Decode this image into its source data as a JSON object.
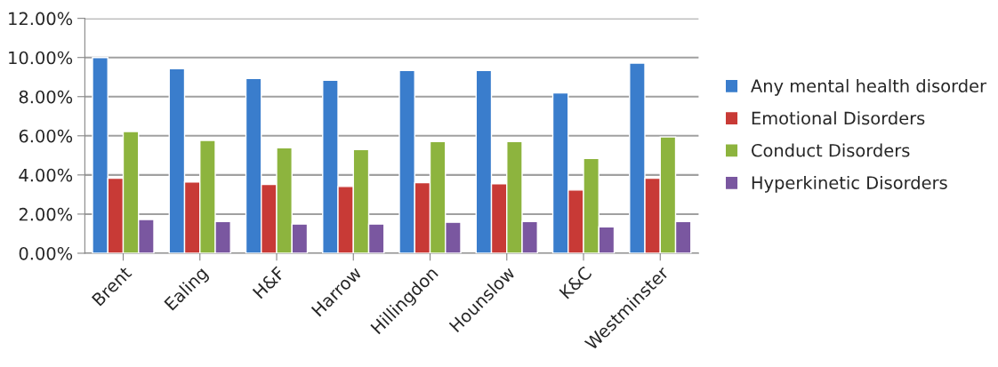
{
  "chart_data": {
    "type": "bar",
    "categories": [
      "Brent",
      "Ealing",
      "H&F",
      "Harrow",
      "Hillingdon",
      "Hounslow",
      "K&C",
      "Westminster"
    ],
    "series": [
      {
        "name": "Any mental health disorder",
        "color": "#3a7dcc",
        "values": [
          10.0,
          9.43,
          8.93,
          8.84,
          9.34,
          9.34,
          8.19,
          9.71
        ]
      },
      {
        "name": "Emotional Disorders",
        "color": "#c83a36",
        "values": [
          3.83,
          3.64,
          3.51,
          3.41,
          3.6,
          3.55,
          3.23,
          3.83
        ]
      },
      {
        "name": "Conduct Disorders",
        "color": "#8db43e",
        "values": [
          6.22,
          5.76,
          5.39,
          5.3,
          5.71,
          5.71,
          4.84,
          5.94
        ]
      },
      {
        "name": "Hyperkinetic Disorders",
        "color": "#7a57a0",
        "values": [
          1.72,
          1.62,
          1.49,
          1.49,
          1.58,
          1.62,
          1.35,
          1.62
        ]
      }
    ],
    "ylim": [
      0,
      12
    ],
    "yticks": [
      {
        "value": 0,
        "label": "0.00%"
      },
      {
        "value": 2,
        "label": "2.00%"
      },
      {
        "value": 4,
        "label": "4.00%"
      },
      {
        "value": 6,
        "label": "6.00%"
      },
      {
        "value": 8,
        "label": "8.00%"
      },
      {
        "value": 10,
        "label": "10.00%"
      },
      {
        "value": 12,
        "label": "12.00%"
      }
    ],
    "grid": "y",
    "legend": "right"
  }
}
